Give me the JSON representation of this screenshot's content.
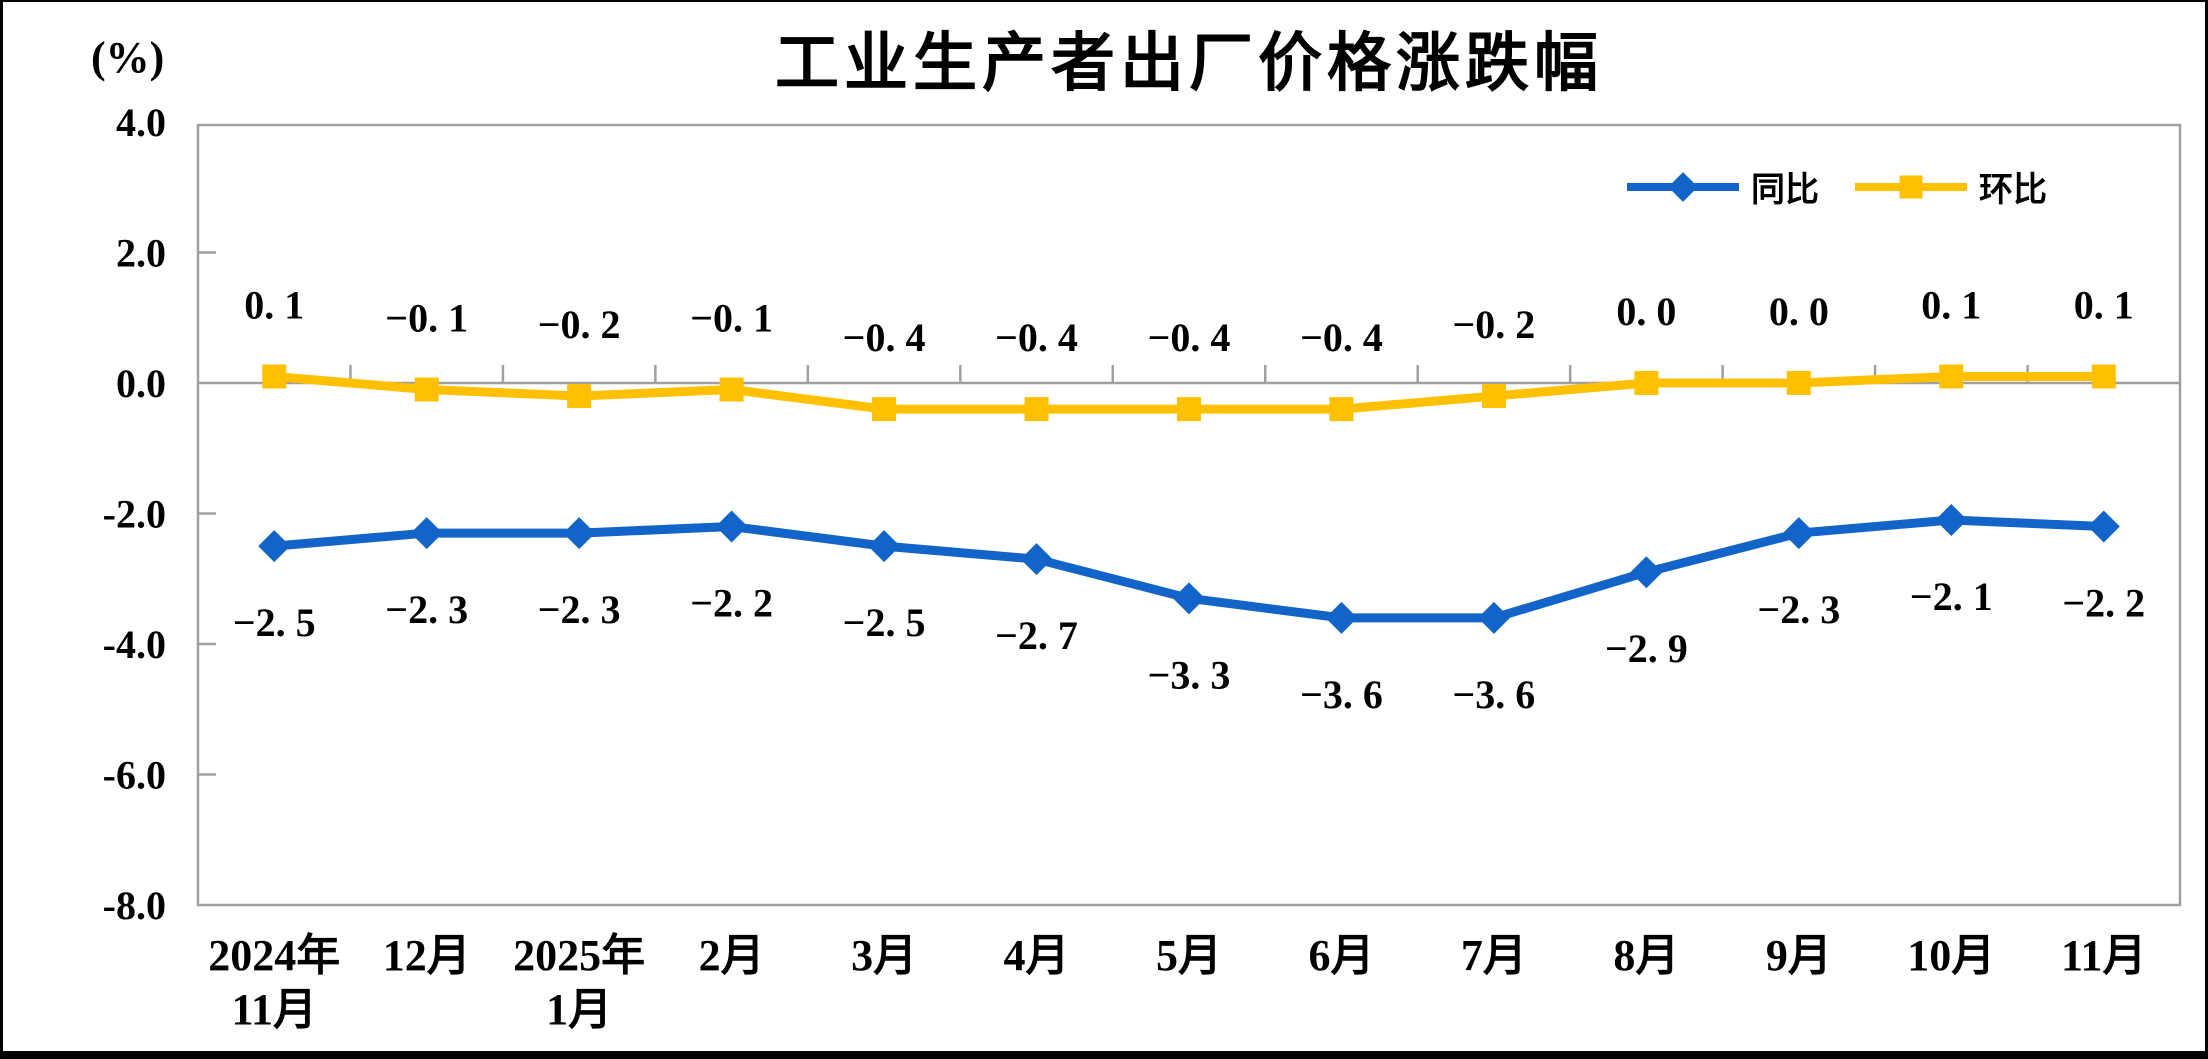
{
  "page": {
    "background": "#ffffff",
    "frame_color": "#000000"
  },
  "chart_data": {
    "type": "line",
    "title": "工业生产者出厂价格涨跌幅",
    "unit_label": "(%)",
    "ylim": [
      -8.0,
      4.0
    ],
    "y_tick_step": 2.0,
    "y_ticks": [
      "4.0",
      "2.0",
      "0.0",
      "-2.0",
      "-4.0",
      "-6.0",
      "-8.0"
    ],
    "grid": "zero-axis-line-only",
    "legend_position": "top-right-inside",
    "axis_color": "#A0A0A0",
    "text_color": "#000000",
    "categories": [
      [
        "2024年",
        "11月"
      ],
      [
        "12月"
      ],
      [
        "2025年",
        "1月"
      ],
      [
        "2月"
      ],
      [
        "3月"
      ],
      [
        "4月"
      ],
      [
        "5月"
      ],
      [
        "6月"
      ],
      [
        "7月"
      ],
      [
        "8月"
      ],
      [
        "9月"
      ],
      [
        "10月"
      ],
      [
        "11月"
      ]
    ],
    "series": [
      {
        "key": "tongbi",
        "name": "同比",
        "color": "#1264C8",
        "marker": "diamond",
        "label_position": "below",
        "values": [
          -2.5,
          -2.3,
          -2.3,
          -2.2,
          -2.5,
          -2.7,
          -3.3,
          -3.6,
          -3.6,
          -2.9,
          -2.3,
          -2.1,
          -2.2
        ],
        "labels": [
          "−2. 5",
          "−2. 3",
          "−2. 3",
          "−2. 2",
          "−2. 5",
          "−2. 7",
          "−3. 3",
          "−3. 6",
          "−3. 6",
          "−2. 9",
          "−2. 3",
          "−2. 1",
          "−2. 2"
        ]
      },
      {
        "key": "huanbi",
        "name": "环比",
        "color": "#FFC000",
        "marker": "square",
        "label_position": "above",
        "values": [
          0.1,
          -0.1,
          -0.2,
          -0.1,
          -0.4,
          -0.4,
          -0.4,
          -0.4,
          -0.2,
          0.0,
          0.0,
          0.1,
          0.1
        ],
        "labels": [
          "0. 1",
          "−0. 1",
          "−0. 2",
          "−0. 1",
          "−0. 4",
          "−0. 4",
          "−0. 4",
          "−0. 4",
          "−0. 2",
          "0. 0",
          "0. 0",
          "0. 1",
          "0. 1"
        ]
      }
    ]
  }
}
